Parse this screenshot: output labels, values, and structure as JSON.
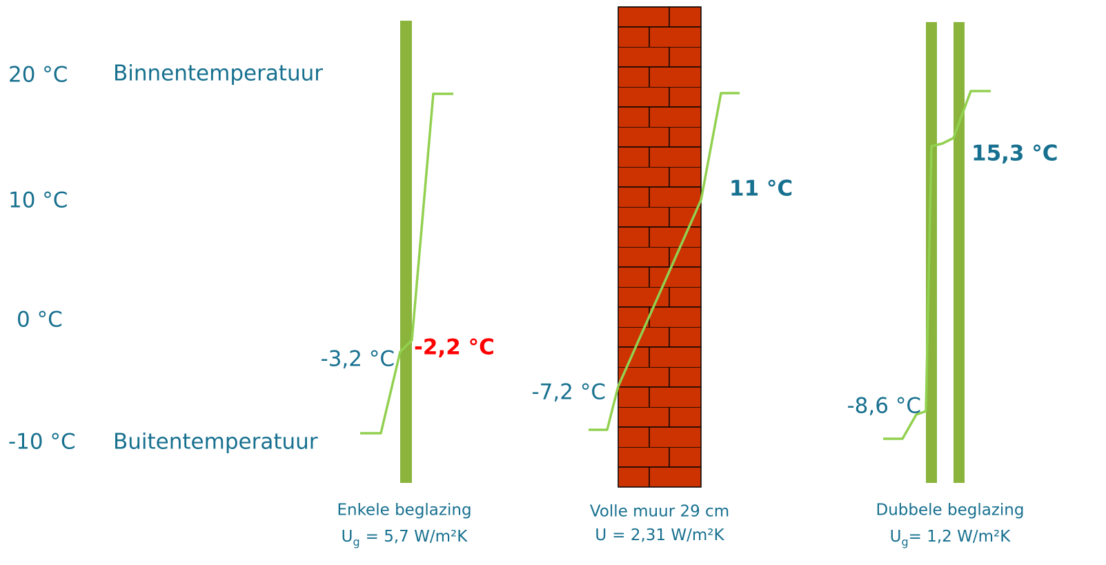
{
  "scale": {
    "labels": [
      "20 °C",
      "10 °C",
      "0 °C",
      "-10 °C"
    ],
    "inside": "Binnentemperatuur",
    "outside": "Buitentemperatuur"
  },
  "panels": [
    {
      "inner_temp": "-2,2 °C",
      "outer_temp": "-3,2 °C",
      "caption": "Enkele beglazing",
      "u_symbol": "U",
      "u_subscript": "g",
      "u_value": "= 5,7 W/m²K"
    },
    {
      "inner_temp": "11 °C",
      "outer_temp": "-7,2 °C",
      "caption": "Volle muur 29 cm",
      "u_symbol": "U",
      "u_value": "= 2,31 W/m²K"
    },
    {
      "inner_temp": "15,3 °C",
      "outer_temp": "-8,6 °C",
      "caption": "Dubbele beglazing",
      "u_symbol": "U",
      "u_subscript": "g",
      "u_value": "= 1,2 W/m²K"
    }
  ]
}
